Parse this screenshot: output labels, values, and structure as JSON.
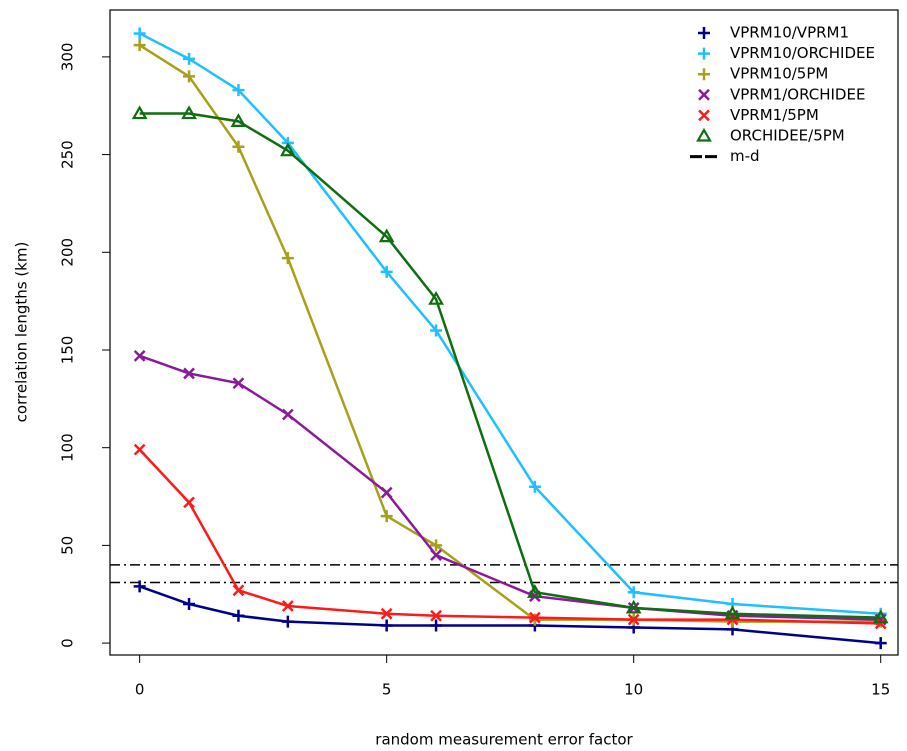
{
  "chart_data": {
    "type": "line",
    "x_label": "random measurement error factor",
    "y_label": "correlation lengths (km)",
    "x": [
      0,
      1,
      2,
      3,
      5,
      6,
      8,
      10,
      12,
      15
    ],
    "series": [
      {
        "name": "VPRM10/VPRM1",
        "color": "#00008b",
        "marker": "plus",
        "values": [
          29,
          20,
          14,
          11,
          9,
          9,
          9,
          8,
          7,
          0
        ]
      },
      {
        "name": "VPRM10/ORCHIDEE",
        "color": "#1ec0ff",
        "marker": "plus",
        "values": [
          312,
          299,
          283,
          256,
          190,
          160,
          80,
          26,
          20,
          15
        ]
      },
      {
        "name": "VPRM10/5PM",
        "color": "#a8a01a",
        "marker": "plus",
        "values": [
          306,
          290,
          254,
          197,
          65,
          50,
          12,
          12,
          11,
          11
        ]
      },
      {
        "name": "VPRM1/ORCHIDEE",
        "color": "#8b1a9b",
        "marker": "cross",
        "values": [
          147,
          138,
          133,
          117,
          77,
          45,
          24,
          18,
          14,
          12
        ]
      },
      {
        "name": "VPRM1/5PM",
        "color": "#ff1a1a",
        "marker": "cross",
        "values": [
          99,
          72,
          27,
          19,
          15,
          14,
          13,
          12,
          12,
          10
        ]
      },
      {
        "name": "ORCHIDEE/5PM",
        "color": "#0f6e0f",
        "marker": "triangle",
        "values": [
          271,
          271,
          267,
          252,
          208,
          176,
          26,
          18,
          15,
          13
        ]
      }
    ],
    "reference_lines": {
      "name": "m-d",
      "color": "#000000",
      "values": [
        40,
        31
      ]
    },
    "xlim": [
      -0.6,
      15.35
    ],
    "ylim": [
      -6.1,
      324
    ],
    "xticks": [
      0,
      5,
      10,
      15
    ],
    "yticks": [
      0,
      50,
      100,
      150,
      200,
      250,
      300
    ],
    "legend": "top-right",
    "grid": false
  }
}
